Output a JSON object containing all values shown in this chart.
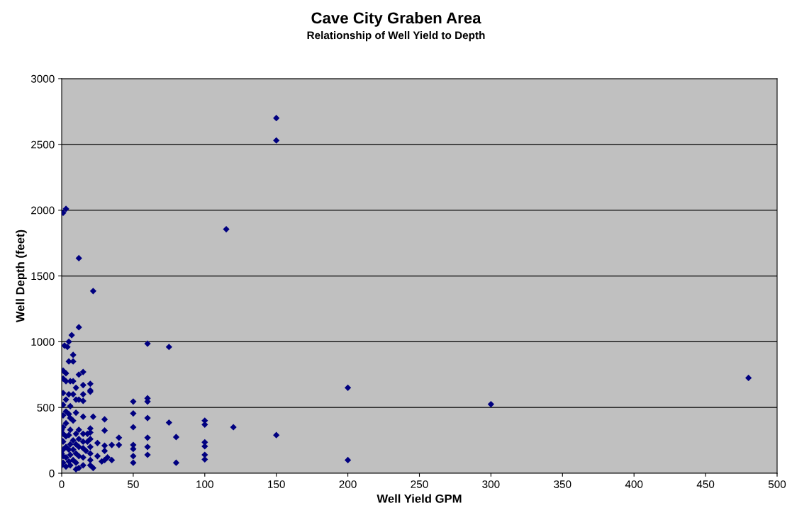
{
  "chart_data": {
    "type": "scatter",
    "title": "Cave City Graben Area",
    "subtitle": "Relationship of Well Yield to Depth",
    "xlabel": "Well Yield GPM",
    "ylabel": "Well Depth (feet)",
    "xlim": [
      0,
      500
    ],
    "xticks": [
      0,
      50,
      100,
      150,
      200,
      250,
      300,
      350,
      400,
      450,
      500
    ],
    "ylim": [
      0,
      3000
    ],
    "yticks": [
      0,
      500,
      1000,
      1500,
      2000,
      2500,
      3000
    ],
    "grid": "y",
    "marker": "diamond",
    "legend": false,
    "series": [
      {
        "color": "#000080",
        "x": [
          150,
          150,
          1,
          3,
          115,
          12,
          22,
          12,
          7,
          60,
          75,
          5,
          4,
          2,
          8,
          5,
          8,
          480,
          300,
          200,
          200,
          150,
          120,
          100,
          100,
          100,
          100,
          100,
          100,
          80,
          80,
          75,
          60,
          60,
          60,
          60,
          60,
          60,
          50,
          50,
          50,
          50,
          50,
          50,
          50,
          40,
          40,
          35,
          35,
          32,
          30,
          30,
          30,
          30,
          30,
          28,
          25,
          25,
          22,
          22,
          20,
          20,
          20,
          20,
          20,
          20,
          20,
          20,
          20,
          20,
          18,
          18,
          17,
          15,
          15,
          15,
          15,
          15,
          15,
          15,
          15,
          15,
          15,
          12,
          12,
          12,
          12,
          12,
          12,
          12,
          10,
          10,
          10,
          10,
          10,
          10,
          10,
          10,
          8,
          8,
          8,
          8,
          8,
          8,
          6,
          6,
          6,
          6,
          6,
          6,
          6,
          5,
          5,
          5,
          5,
          5,
          3,
          3,
          3,
          3,
          3,
          3,
          3,
          3,
          3,
          1,
          1,
          1,
          1,
          1,
          1,
          1,
          1,
          1,
          1,
          1,
          0,
          0,
          0,
          0
        ],
        "values": [
          2700,
          2530,
          1980,
          2010,
          1855,
          1635,
          1385,
          1110,
          1050,
          985,
          960,
          1000,
          960,
          970,
          900,
          850,
          850,
          725,
          525,
          650,
          100,
          290,
          350,
          400,
          370,
          235,
          205,
          140,
          105,
          275,
          80,
          385,
          570,
          545,
          420,
          270,
          200,
          140,
          545,
          455,
          350,
          215,
          185,
          130,
          80,
          270,
          215,
          215,
          100,
          120,
          410,
          325,
          210,
          170,
          100,
          90,
          230,
          130,
          430,
          40,
          680,
          630,
          620,
          340,
          310,
          260,
          200,
          150,
          100,
          60,
          300,
          240,
          170,
          770,
          670,
          600,
          550,
          430,
          300,
          240,
          190,
          120,
          60,
          750,
          560,
          330,
          260,
          200,
          130,
          40,
          650,
          560,
          460,
          300,
          220,
          150,
          80,
          30,
          700,
          600,
          400,
          250,
          180,
          100,
          700,
          510,
          420,
          330,
          220,
          140,
          60,
          600,
          450,
          290,
          180,
          90,
          760,
          700,
          560,
          470,
          380,
          280,
          200,
          120,
          50,
          780,
          720,
          610,
          520,
          440,
          350,
          300,
          240,
          180,
          130,
          80,
          330,
          250,
          150,
          60
        ]
      }
    ]
  }
}
